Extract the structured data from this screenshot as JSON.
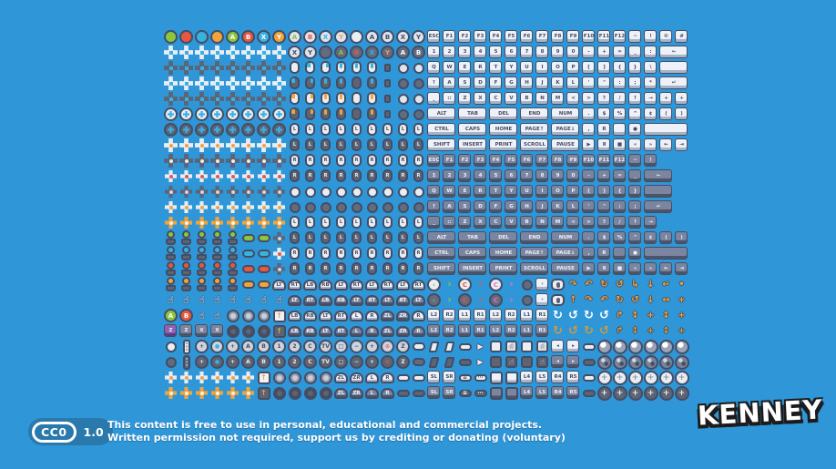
{
  "background_color": "#2f96d8",
  "palette": {
    "green": "#8cc63f",
    "red": "#e8573f",
    "cyan": "#38b1e3",
    "gold": "#f2a33c",
    "dark": "#454d62",
    "light": "#e9edf4",
    "purple": "#8e62b5",
    "pink": "#ef6eb8",
    "badge_blue": "#2a79ad"
  },
  "footer": {
    "license_badge": {
      "cc_label": "CC0",
      "version": "1.0"
    },
    "line1": "This content is free to use in personal, educational and commercial projects.",
    "line2": "Written permission not required, support us by crediting or donating (voluntary)"
  },
  "logo": {
    "text": "KENNEY"
  },
  "sheet": {
    "rows": [
      [
        "ci bgG",
        "ci bgR",
        "ci bgB",
        "ci bgY",
        "ci bgG|A",
        "ci bgR|B",
        "ci bgB|X",
        "ci bgY|Y",
        "ci bgE tG|A",
        "ci bgE tR|B",
        "ci bgE tB|X",
        "ci bgE tY|Y",
        "ci bgW",
        "ci bgE tD|A",
        "ci bgE tD|B",
        "ci bgE tD|X",
        "ci bgE tD|Y",
        "k kl|ESC",
        "k kl|F1",
        "k kl|F2",
        "k kl|F3",
        "k kl|F4",
        "k kl|F5",
        "k kl|F6",
        "k kl|F7",
        "k kl|F8",
        "k kl|F9",
        "k kl|F10",
        "k kl|F11",
        "k kl|F12",
        "k kl|~",
        "k kl|!",
        "k kl|©",
        "k kl|#"
      ],
      [
        "8*cr crW",
        "ci bgE tD|X",
        "ci bgE tD|Y",
        "ci bgD",
        "ci bgD tG|A",
        "ci bgD tR|B",
        "ci bgD tB|X",
        "ci bgD tY|Y",
        "ci bgD|A",
        "ci bgD|B",
        "k kl|1",
        "k kl|2",
        "k kl|3",
        "k kl|4",
        "k kl|5",
        "k kl|6",
        "k kl|7",
        "k kl|8",
        "k kl|9",
        "k kl|0",
        "k kl|-",
        "k kl|+",
        "k kl|=",
        "k kl|_",
        "k kl|:",
        "k kl w2|←"
      ],
      [
        "8*cr crD",
        "mo mw",
        "mo mw aL",
        "mo mw aR",
        "mo mw aW",
        "mo mw aW",
        "mo mw aW",
        "pg",
        "bl bgE",
        "bl bgE",
        "k kl|Q",
        "k kl|W",
        "k kl|E",
        "k kl|R",
        "k kl|T",
        "k kl|Y",
        "k kl|U",
        "k kl|I",
        "k kl|O",
        "k kl|P",
        "k kl|[",
        "k kl|]",
        "k kl|{",
        "k kl|}",
        "k kl|\\",
        "k kl w2"
      ],
      [
        "8*cr crW",
        "mo md aL",
        "mo md aR",
        "mo md aW",
        "mo md aW",
        "mo md",
        "mo md aW",
        "pg",
        "bl bgD",
        "bl bgD",
        "k kl|↑",
        "k kl|A",
        "k kl|S",
        "k kl|D",
        "k kl|F",
        "k kl|G",
        "k kl|H",
        "k kl|J",
        "k kl|K",
        "k kl|L",
        "k kl|'",
        "k kl|\"",
        "k kl|:",
        "k kl|;",
        "k kl|*",
        "k kl w2|↵"
      ],
      [
        "8*cr crD",
        "mo mw aL acY",
        "mo mw aR acY",
        "mo mw aW acY",
        "mo mw aW acY",
        "mo mw",
        "mo mw aW acY",
        "pg",
        "bl bgE",
        "bl bgE",
        "k kl|_",
        "k kl|::",
        "k kl|Z",
        "k kl|X",
        "k kl|C",
        "k kl|V",
        "k kl|B",
        "k kl|N",
        "k kl|M",
        "k kl|<",
        "k kl|>",
        "k kl|?",
        "k kl|/",
        "k kl|↑",
        "k kl|→",
        "k kl|+",
        "k kl|+"
      ],
      [
        "8*rp rpW",
        "mo md aL acY",
        "mo md aR acY",
        "mo md aW acY",
        "mo md aW acY",
        "mo md",
        "mo md aW acY",
        "pg",
        "bl bgD",
        "bl bgD",
        "k kl w2|ALT",
        "k kl w2|TAB",
        "k kl w2|DEL",
        "k kl w2|END",
        "k kl w2|NUM",
        "k kl|.",
        "k kl|$",
        "k kl|%",
        "k kl|^",
        "k kl|¢",
        "k kl|(",
        "k kl|)"
      ],
      [
        "8*rp rpD",
        "9*mo mw|L",
        "k kl w2|CTRL",
        "k kl w2|CAPS",
        "k kl w2|HOME",
        "k kl w2|PAGE↑",
        "k kl w2|PAGE↓",
        "k kl|,",
        "k kl|R",
        "k kl",
        "k kl|●",
        "k kl w3"
      ],
      [
        "8*fd fdW",
        "9*mo md|L",
        "k kl w2|SHIFT",
        "k kl w2|INSERT",
        "k kl w2|PRINT",
        "k kl w2|SCROLL",
        "k kl w2|PAUSE",
        "k kl|▶",
        "k kl|Ⅱ",
        "k kl|■",
        "k kl|«",
        "k kl|»",
        "k kl|⇤",
        "k kl|⇥"
      ],
      [
        "8*fd fdD",
        "9*mo mw|R",
        "k kd|ESC",
        "k kd|F1",
        "k kd|F2",
        "k kd|F3",
        "k kd|F4",
        "k kd|F5",
        "k kd|F6",
        "k kd|F7",
        "k kd|F8",
        "k kd|F9",
        "k kd|F10",
        "k kd|F11",
        "k kd|F12",
        "k kd|~",
        "k kd|!"
      ],
      [
        "8*dm dmW",
        "9*mo md|R",
        "k kd|1",
        "k kd|2",
        "k kd|3",
        "k kd|4",
        "k kd|5",
        "k kd|6",
        "k kd|7",
        "k kd|8",
        "k kd|9",
        "k kd|0",
        "k kd|-",
        "k kd|+",
        "k kd|=",
        "k kd|_",
        "k kd w2|←"
      ],
      [
        "8*dm dmD",
        "9*bl bgW",
        "k kd|Q",
        "k kd|W",
        "k kd|E",
        "k kd|R",
        "k kd|T",
        "k kd|Y",
        "k kd|U",
        "k kd|I",
        "k kd|O",
        "k kd|P",
        "k kd|[",
        "k kd|]",
        "k kd|{",
        "k kd|}",
        "k kd w2"
      ],
      [
        "8*dm dmH",
        "9*bl bgD",
        "k kd|↑",
        "k kd|A",
        "k kd|S",
        "k kd|D",
        "k kd|F",
        "k kd|G",
        "k kd|H",
        "k kd|J",
        "k kd|K",
        "k kd|L",
        "k kd|'",
        "k kd|\"",
        "k kd|:",
        "k kd|;",
        "k kd w2|↵"
      ],
      [
        "8*dm dmY",
        "9*mo mw|L",
        "k kd|_",
        "k kd|::",
        "k kd|Z",
        "k kd|X",
        "k kd|C",
        "k kd|V",
        "k kd|B",
        "k kd|N",
        "k kd|M",
        "k kd|<",
        "k kd|>",
        "k kd|?",
        "k kd|/",
        "k kd|↑",
        "k kd|→"
      ],
      [
        "5*jy jG",
        "2*ov bgG",
        "dm dmD",
        "9*mo md|L",
        "k kd w2|ALT",
        "k kd w2|TAB",
        "k kd w2|DEL",
        "k kd w2|END",
        "k kd w2|NUM",
        "k kd|.",
        "k kd|$",
        "k kd|%",
        "k kd|^",
        "k kd|¢",
        "k kd|(",
        "k kd|)"
      ],
      [
        "5*jy jB",
        "2*ov bgB",
        "dm dmW",
        "9*mo mw|R",
        "k kd w2|CTRL",
        "k kd w2|CAPS",
        "k kd w2|HOME",
        "k kd w2|PAGE↑",
        "k kd w2|PAGE↓",
        "k kd|,",
        "k kd|R",
        "k kd",
        "k kd|●",
        "k kd w3"
      ],
      [
        "5*jy jR",
        "2*ov bgR",
        "dm dmD",
        "9*mo md|R",
        "k kd w2|SHIFT",
        "k kd w2|INSERT",
        "k kd w2|PRINT",
        "k kd w2|SCROLL",
        "k kd w2|PAUSE",
        "k kd|▶",
        "k kd|Ⅱ",
        "k kd|■",
        "k kd|«",
        "k kd|»",
        "k kd|⇤",
        "k kd|⇥"
      ],
      [
        "5*jy jY",
        "2*ov bgY",
        "sh kl|LT",
        "sh kl|RT",
        "sh kl|LB",
        "sh kl|RB",
        "sh kl|LT",
        "sh kl|RT",
        "sh kl|LT",
        "sh kl|RT",
        "sh kl|LT",
        "sh kl|RT",
        "ci bgW tG|‹",
        "br tG|›",
        "ci bgW tR|C",
        "br tR|›",
        "ci bgW tP|C",
        "br tP|›",
        "bl bgD",
        "k kl|‹",
        "mi",
        "ar|↷",
        "ar|↶",
        "ar|↻",
        "ar|↺",
        "ar|↳",
        "ar|↓",
        "ar|↵",
        "ar|•"
      ],
      [
        "8*hd|☝",
        "sh kd|LT",
        "sh kd|RT",
        "sh kd|LB",
        "sh kd|RB",
        "sh kd|LT",
        "sh kd|RT",
        "sh kd|LT",
        "sh kd|RT",
        "sh kd|LT",
        "ci bgD tG|‹",
        "br tG|›",
        "ci bgD tR|C",
        "br tR|›",
        "ci bgD tP|C",
        "br tP|›",
        "bl bgD",
        "k kl|‹",
        "mi",
        "ar|↑",
        "ar|↷",
        "ar|↶",
        "ar|↻",
        "ar|↺",
        "ar|↓",
        "ar|↔",
        "ar|+"
      ],
      [
        "ci bgG|A",
        "ci bgR|B",
        "hd|☝",
        "hd|☝",
        "dc",
        "dc",
        "dc",
        "bx|↑",
        "sh kl|LB",
        "sh kl|RB",
        "sh kl|LT",
        "sh kl|RT",
        "sh kl|L",
        "sh kl|R",
        "sh kd|ZL",
        "sh kd|ZR",
        "sh kl|R",
        "k kl|L2",
        "k kl|R2",
        "k kl|L1",
        "k kl|R1",
        "k kl|L2",
        "k kl|R2",
        "k kl|L1",
        "k kl|R1",
        "arB|↻",
        "arB|↺",
        "arB|↻",
        "arB|↺",
        "ar|↱",
        "ar|↕",
        "ar|+",
        "ar|↕",
        "ar|+"
      ],
      [
        "k kp|Z",
        "k kd|Z",
        "k kd|X",
        "k kd|X",
        "dc dcD",
        "dc dcD",
        "dc dcD",
        "bx bxD|↑",
        "sh kd|LB",
        "sh kd|RB",
        "sh kd|LT",
        "sh kd|RT",
        "sh kd|L",
        "sh kd|R",
        "sh kd|ZL",
        "sh kd|ZR",
        "sh kd|R",
        "k kd|L2",
        "k kd|R2",
        "k kd|L1",
        "k kd|R1",
        "k kd|L2",
        "k kd|R2",
        "k kd|L1",
        "k kd|R1",
        "arB arD|↻",
        "arB arD|↺",
        "arB arD|↻",
        "arB arD|↺",
        "ar arD|↱",
        "ar arD|↕",
        "ar arD|+",
        "ar arD|↕",
        "ar arD|+"
      ],
      [
        "bl bgW",
        "wi mw",
        "rb|+",
        "rb tB|●",
        "rb|+",
        "rb|A",
        "rb|B",
        "rb|1",
        "rb|2",
        "rb|C",
        "rb|TV",
        "rb|□",
        "rb|−",
        "rb|+",
        "rb tR|⊙",
        "rb|Z",
        "ov bgW",
        "sl mw",
        "sl mw",
        "pl mw",
        "ar arW|▶",
        "tp mw",
        "tp mw|☝",
        "tp mw",
        "tp mw|☝",
        "k kl|◂",
        "k kl|▸",
        "pl mw",
        "6*tx txW"
      ],
      [
        "bl bgD",
        "wi md",
        "rbD|+",
        "rbD tB|●",
        "rbD|+",
        "rbD|A",
        "rbD|B",
        "rbD|1",
        "rbD|2",
        "rbD|C",
        "rbD|TV",
        "rbD|□",
        "rbD|−",
        "rbD|+",
        "rbD tR|⊙",
        "rbD|Z",
        "ov bgD",
        "sl md",
        "sl md",
        "pl md",
        "ar arW|▶",
        "tp md",
        "tp md|☝",
        "tp md",
        "tp md|☝",
        "k kd|◂",
        "k kd|▸",
        "pl md",
        "6*tx txD"
      ],
      [
        "6*dm dmH",
        "bx|↑",
        "dc",
        "dc",
        "dc",
        "dc",
        "sh kl|ZL",
        "sh kl|ZR",
        "sh kl|L",
        "sh kl|R",
        "pl mw",
        "pl mw",
        "k kl|SL",
        "k kl|SR",
        "pl mw|≡",
        "pl mw|⋯",
        "sqr kl",
        "sqr kl",
        "k kl|L4",
        "k kl|L5",
        "k kl|R4",
        "k kl|R5",
        "pl mw",
        "6*tx txC|+"
      ],
      [
        "6*dm dmY",
        "bx bxD|↑",
        "dc dcD",
        "dc dcD",
        "dc dcD",
        "dc dcD",
        "sh kd|ZL",
        "sh kd|ZR",
        "sh kd|L",
        "sh kd|R",
        "pl md",
        "pl md",
        "k kd|SL",
        "k kd|SR",
        "pl md|≡",
        "pl md|⋯",
        "sqr kd",
        "sqr kd",
        "k kd|L4",
        "k kd|L5",
        "k kd|R4",
        "k kd|R5",
        "pl md",
        "6*tx txP|+"
      ]
    ]
  }
}
